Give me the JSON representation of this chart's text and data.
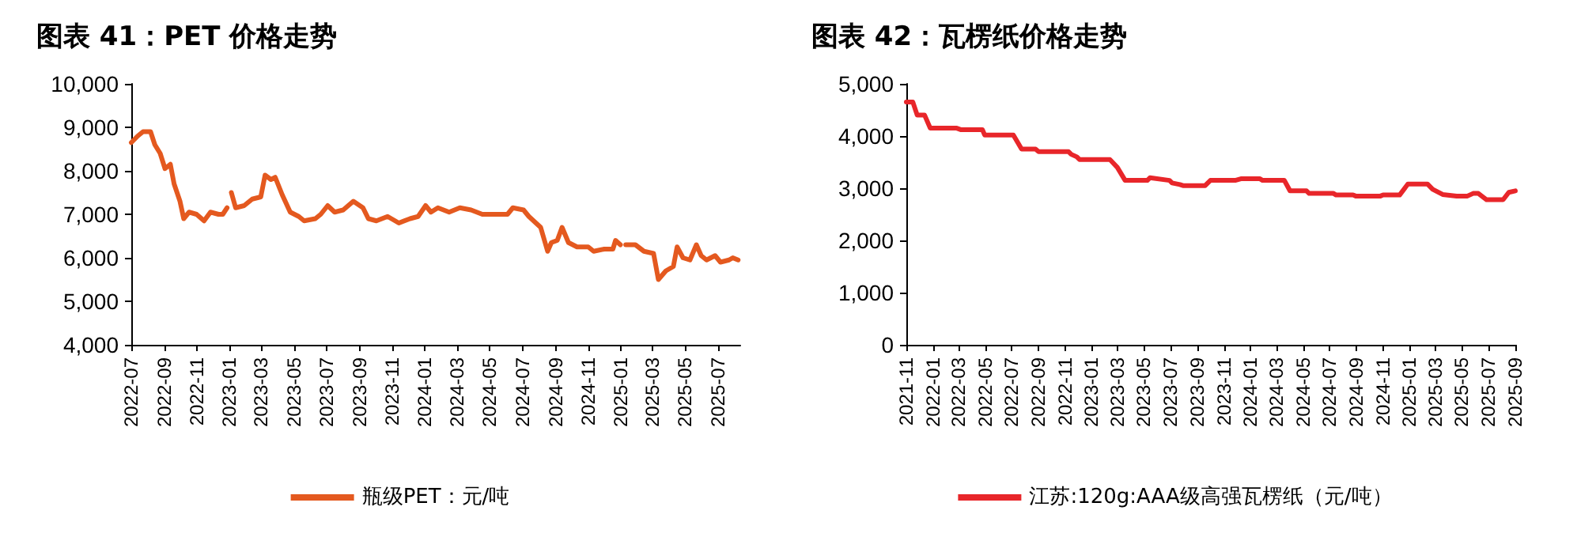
{
  "chart_data": [
    {
      "type": "line",
      "title": "图表 41：PET 价格走势",
      "legend": "bottom",
      "grid": false,
      "marker": "none",
      "line_style": "solid",
      "xlim": [
        "2022-07-01",
        "2025-08-12"
      ],
      "xticks": [
        "2022-07",
        "2022-09",
        "2022-11",
        "2023-01",
        "2023-03",
        "2023-05",
        "2023-07",
        "2023-09",
        "2023-11",
        "2024-01",
        "2024-03",
        "2024-05",
        "2024-07",
        "2024-09",
        "2024-11",
        "2025-01",
        "2025-03",
        "2025-05",
        "2025-07"
      ],
      "ylim": [
        4000,
        10000
      ],
      "yticks": [
        {
          "value": 4000,
          "label": "4,000"
        },
        {
          "value": 5000,
          "label": "5,000"
        },
        {
          "value": 6000,
          "label": "6,000"
        },
        {
          "value": 7000,
          "label": "7,000"
        },
        {
          "value": 8000,
          "label": "8,000"
        },
        {
          "value": 9000,
          "label": "9,000"
        },
        {
          "value": 10000,
          "label": "10,000"
        }
      ],
      "series": [
        {
          "name": "瓶级PET：元/吨",
          "color": "#e4591f",
          "x": [
            "2022-07-01",
            "2022-07-13",
            "2022-07-23",
            "2022-08-06",
            "2022-08-14",
            "2022-08-24",
            "2022-09-02",
            "2022-09-12",
            "2022-09-19",
            "2022-09-30",
            "2022-10-07",
            "2022-10-17",
            "2022-10-31",
            "2022-11-14",
            "2022-11-26",
            "2022-12-11",
            "2022-12-19",
            "2022-12-27",
            "2022-12-30",
            "2023-01-04",
            "2023-01-12",
            "2023-01-28",
            "2023-02-12",
            "2023-02-28",
            "2023-03-08",
            "2023-03-19",
            "2023-03-27",
            "2023-04-09",
            "2023-04-24",
            "2023-05-10",
            "2023-05-20",
            "2023-06-10",
            "2023-06-20",
            "2023-07-03",
            "2023-07-16",
            "2023-08-01",
            "2023-08-20",
            "2023-09-07",
            "2023-09-17",
            "2023-10-02",
            "2023-10-23",
            "2023-11-13",
            "2023-12-04",
            "2023-12-19",
            "2024-01-02",
            "2024-01-12",
            "2024-01-25",
            "2024-02-15",
            "2024-03-06",
            "2024-03-27",
            "2024-04-17",
            "2024-05-07",
            "2024-06-03",
            "2024-06-13",
            "2024-07-03",
            "2024-07-13",
            "2024-08-04",
            "2024-08-17",
            "2024-08-24",
            "2024-09-04",
            "2024-09-13",
            "2024-09-25",
            "2024-10-11",
            "2024-11-01",
            "2024-11-11",
            "2024-12-01",
            "2024-12-17",
            "2024-12-22",
            "2024-12-31",
            "2025-01-03",
            "2025-01-10",
            "2025-01-28",
            "2025-02-13",
            "2025-03-03",
            "2025-03-12",
            "2025-03-26",
            "2025-04-09",
            "2025-04-16",
            "2025-04-27",
            "2025-05-10",
            "2025-05-22",
            "2025-05-31",
            "2025-06-10",
            "2025-06-26",
            "2025-07-06",
            "2025-07-22",
            "2025-07-29",
            "2025-08-08"
          ],
          "values": [
            8650,
            8800,
            8900,
            8900,
            8600,
            8400,
            8050,
            8150,
            7700,
            7300,
            6900,
            7050,
            7000,
            6850,
            7050,
            7000,
            7000,
            7150,
            null,
            7500,
            7150,
            7200,
            7350,
            7400,
            7900,
            7800,
            7850,
            7450,
            7050,
            6950,
            6850,
            6900,
            7000,
            7200,
            7050,
            7100,
            7300,
            7150,
            6900,
            6850,
            6950,
            6800,
            6900,
            6950,
            7200,
            7050,
            7150,
            7050,
            7150,
            7100,
            7000,
            7000,
            7000,
            7150,
            7100,
            6950,
            6700,
            6150,
            6350,
            6400,
            6700,
            6350,
            6250,
            6250,
            6150,
            6200,
            6200,
            6400,
            6300,
            null,
            6300,
            6300,
            6150,
            6100,
            5500,
            5700,
            5800,
            6250,
            6000,
            5950,
            6300,
            6050,
            5950,
            6050,
            5900,
            5950,
            6000,
            5950
          ]
        }
      ]
    },
    {
      "type": "line",
      "title": "图表 42：瓦楞纸价格走势",
      "legend": "bottom",
      "grid": false,
      "marker": "none",
      "line_style": "solid",
      "xlim": [
        "2021-11-01",
        "2025-09-01"
      ],
      "xticks": [
        "2021-11",
        "2022-01",
        "2022-03",
        "2022-05",
        "2022-07",
        "2022-09",
        "2022-11",
        "2023-01",
        "2023-03",
        "2023-05",
        "2023-07",
        "2023-09",
        "2023-11",
        "2024-01",
        "2024-03",
        "2024-05",
        "2024-07",
        "2024-09",
        "2024-11",
        "2025-01",
        "2025-03",
        "2025-05",
        "2025-07",
        "2025-09"
      ],
      "ylim": [
        0,
        5000
      ],
      "yticks": [
        0,
        {
          "value": 1000,
          "label": "1,000"
        },
        {
          "value": 2000,
          "label": "2,000"
        },
        {
          "value": 3000,
          "label": "3,000"
        },
        {
          "value": 4000,
          "label": "4,000"
        },
        {
          "value": 5000,
          "label": "5,000"
        }
      ],
      "series": [
        {
          "name": "江苏:120g:AAA级高强瓦楞纸（元/吨）",
          "color": "#e8262a",
          "x": [
            "2021-11-01",
            "2021-11-16",
            "2021-11-26",
            "2021-12-13",
            "2021-12-26",
            "2022-02-25",
            "2022-03-07",
            "2022-04-25",
            "2022-04-30",
            "2022-07-05",
            "2022-07-24",
            "2022-08-25",
            "2022-09-01",
            "2022-11-09",
            "2022-11-15",
            "2022-11-28",
            "2022-12-04",
            "2023-02-12",
            "2023-03-01",
            "2023-03-19",
            "2023-05-09",
            "2023-05-15",
            "2023-06-29",
            "2023-07-05",
            "2023-07-23",
            "2023-07-30",
            "2023-09-19",
            "2023-10-01",
            "2023-11-27",
            "2023-12-10",
            "2024-01-23",
            "2024-01-29",
            "2024-03-19",
            "2024-04-01",
            "2024-05-09",
            "2024-05-15",
            "2024-07-10",
            "2024-07-16",
            "2024-08-24",
            "2024-08-30",
            "2024-10-26",
            "2024-11-01",
            "2024-12-09",
            "2024-12-28",
            "2025-02-11",
            "2025-02-23",
            "2025-03-18",
            "2025-04-19",
            "2025-05-14",
            "2025-05-27",
            "2025-06-08",
            "2025-06-27",
            "2025-08-04",
            "2025-08-17",
            "2025-09-01"
          ],
          "values": [
            4650,
            4650,
            4400,
            4400,
            4150,
            4150,
            4120,
            4120,
            4020,
            4020,
            3750,
            3750,
            3700,
            3700,
            3650,
            3600,
            3550,
            3550,
            3400,
            3150,
            3150,
            3200,
            3150,
            3100,
            3070,
            3050,
            3050,
            3150,
            3150,
            3180,
            3180,
            3150,
            3150,
            2950,
            2950,
            2900,
            2900,
            2870,
            2870,
            2850,
            2850,
            2870,
            2870,
            3080,
            3080,
            2980,
            2880,
            2850,
            2850,
            2900,
            2900,
            2780,
            2780,
            2920,
            2950
          ]
        }
      ]
    }
  ]
}
